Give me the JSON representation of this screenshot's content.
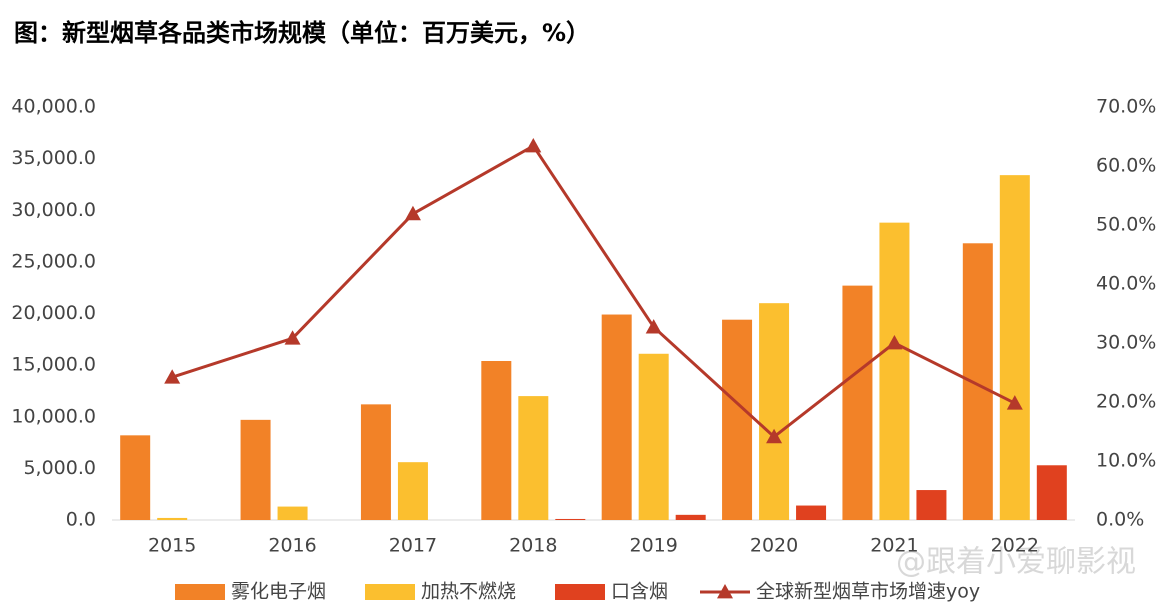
{
  "chart_data": {
    "type": "bar_line",
    "title": "图：新型烟草各品类市场规模（单位：百万美元，%）",
    "watermark": "@跟着小爱聊影视",
    "categories": [
      "2015",
      "2016",
      "2017",
      "2018",
      "2019",
      "2020",
      "2021",
      "2022"
    ],
    "series": [
      {
        "name": "雾化电子烟",
        "type": "bar",
        "color": "#f28227",
        "values": [
          8200,
          9700,
          11200,
          15400,
          19900,
          19400,
          22700,
          26800
        ]
      },
      {
        "name": "加热不燃烧",
        "type": "bar",
        "color": "#fbbf2f",
        "values": [
          200,
          1300,
          5600,
          12000,
          16100,
          21000,
          28800,
          33400
        ]
      },
      {
        "name": "口含烟",
        "type": "bar",
        "color": "#e0411f",
        "values": [
          0,
          0,
          0,
          100,
          500,
          1400,
          2900,
          5300
        ]
      },
      {
        "name": "全球新型烟草市场增速yoy",
        "type": "line",
        "axis": "y2",
        "color": "#b5392a",
        "values": [
          24.2,
          30.8,
          51.9,
          63.4,
          32.7,
          14.1,
          30.0,
          19.8
        ]
      }
    ],
    "ylim": [
      0,
      40000
    ],
    "yticks": [
      {
        "value": 0,
        "label": "0.0"
      },
      {
        "value": 5000,
        "label": "5,000.0"
      },
      {
        "value": 10000,
        "label": "10,000.0"
      },
      {
        "value": 15000,
        "label": "15,000.0"
      },
      {
        "value": 20000,
        "label": "20,000.0"
      },
      {
        "value": 25000,
        "label": "25,000.0"
      },
      {
        "value": 30000,
        "label": "30,000.0"
      },
      {
        "value": 35000,
        "label": "35,000.0"
      },
      {
        "value": 40000,
        "label": "40,000.0"
      }
    ],
    "y2lim": [
      0,
      70
    ],
    "y2ticks": [
      {
        "value": 0,
        "label": "0.0%"
      },
      {
        "value": 10,
        "label": "10.0%"
      },
      {
        "value": 20,
        "label": "20.0%"
      },
      {
        "value": 30,
        "label": "30.0%"
      },
      {
        "value": 40,
        "label": "40.0%"
      },
      {
        "value": 50,
        "label": "50.0%"
      },
      {
        "value": 60,
        "label": "60.0%"
      },
      {
        "value": 70,
        "label": "70.0%"
      }
    ],
    "legend": "bottom"
  }
}
